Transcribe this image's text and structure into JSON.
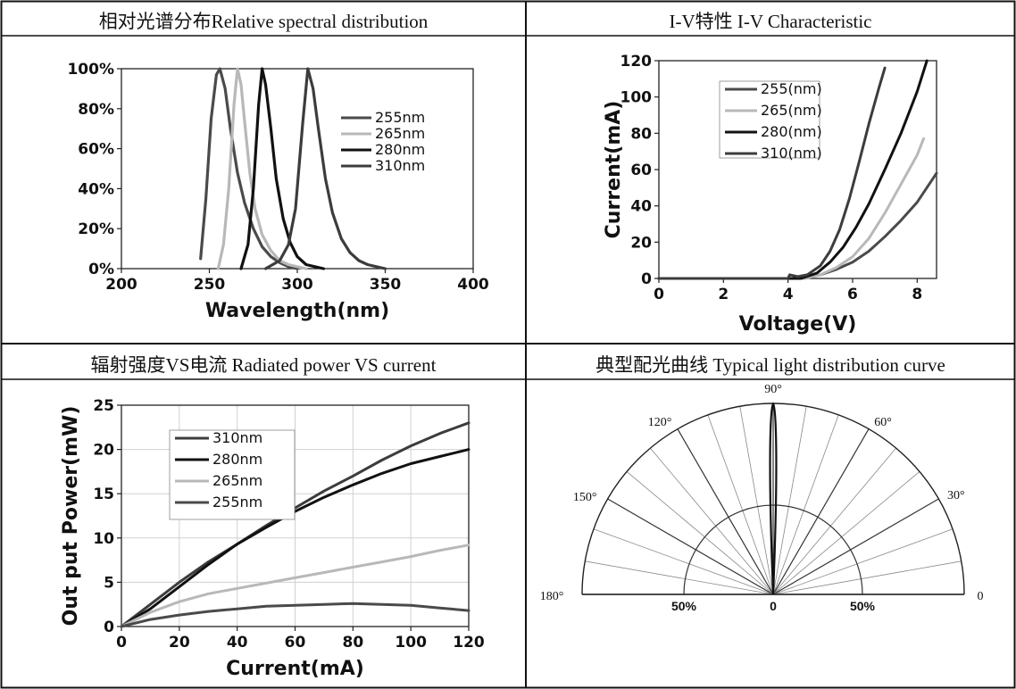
{
  "panels": {
    "spectral_title": "相对光谱分布Relative spectral distribution",
    "iv_title": "I-V特性 I-V Characteristic",
    "power_title": "辐射强度VS电流 Radiated power VS current",
    "polar_title": "典型配光曲线 Typical light distribution curve"
  },
  "colors": {
    "c255": "#4a4a4a",
    "c265": "#b8b8b8",
    "c280": "#111111",
    "c310": "#3c3c3c"
  },
  "chart_data": [
    {
      "type": "line",
      "id": "spectral",
      "xlabel": "Wavelength(nm)",
      "ylabel": "",
      "xlim": [
        200,
        400
      ],
      "ylim": [
        0,
        100
      ],
      "x_ticks": [
        "200",
        "250",
        "300",
        "350",
        "400"
      ],
      "y_ticks": [
        "0%",
        "20%",
        "40%",
        "60%",
        "80%",
        "100%"
      ],
      "legend_position": "right",
      "series": [
        {
          "name": "255nm",
          "color": "#4a4a4a",
          "x": [
            245,
            248,
            251,
            254,
            256,
            259,
            262,
            266,
            270,
            275,
            280,
            285,
            290,
            295,
            300
          ],
          "y": [
            5,
            35,
            75,
            97,
            100,
            90,
            70,
            48,
            33,
            20,
            11,
            6,
            3,
            1,
            0
          ]
        },
        {
          "name": "265nm",
          "color": "#b8b8b8",
          "x": [
            255,
            258,
            261,
            264,
            266,
            268,
            270,
            273,
            276,
            280,
            285,
            290,
            295,
            300,
            305
          ],
          "y": [
            0,
            12,
            40,
            82,
            100,
            92,
            74,
            48,
            30,
            17,
            9,
            4,
            2,
            1,
            0
          ]
        },
        {
          "name": "280nm",
          "color": "#111111",
          "x": [
            268,
            272,
            275,
            278,
            280,
            282,
            285,
            288,
            292,
            296,
            300,
            305,
            310,
            315
          ],
          "y": [
            0,
            12,
            40,
            82,
            100,
            92,
            70,
            45,
            25,
            13,
            6,
            2,
            1,
            0
          ]
        },
        {
          "name": "310nm",
          "color": "#3c3c3c",
          "x": [
            282,
            290,
            295,
            299,
            303,
            306,
            309,
            312,
            316,
            320,
            325,
            330,
            335,
            340,
            345,
            350
          ],
          "y": [
            0,
            4,
            12,
            30,
            72,
            100,
            90,
            70,
            45,
            28,
            15,
            8,
            4,
            2,
            1,
            0
          ]
        }
      ]
    },
    {
      "type": "line",
      "id": "iv",
      "xlabel": "Voltage(V)",
      "ylabel": "Current(mA)",
      "xlim": [
        0,
        8.6
      ],
      "ylim": [
        0,
        120
      ],
      "x_ticks": [
        "0",
        "2",
        "4",
        "6",
        "8"
      ],
      "y_ticks": [
        "0",
        "20",
        "40",
        "60",
        "80",
        "100",
        "120"
      ],
      "legend_position": "top-center",
      "series": [
        {
          "name": "255(nm)",
          "color": "#4a4a4a",
          "x": [
            0,
            4.5,
            5.0,
            5.5,
            6.0,
            6.5,
            7.0,
            7.5,
            8.0,
            8.6
          ],
          "y": [
            0,
            0,
            2,
            5,
            9,
            15,
            23,
            32,
            42,
            58
          ]
        },
        {
          "name": "265(nm)",
          "color": "#b8b8b8",
          "x": [
            0,
            4.5,
            5.0,
            5.5,
            6.0,
            6.5,
            7.0,
            7.5,
            8.0,
            8.2
          ],
          "y": [
            0,
            0,
            2,
            6,
            12,
            22,
            36,
            52,
            68,
            77
          ]
        },
        {
          "name": "280(nm)",
          "color": "#111111",
          "x": [
            0,
            4.4,
            4.9,
            5.3,
            5.7,
            6.1,
            6.5,
            7.0,
            7.5,
            8.0,
            8.3
          ],
          "y": [
            0,
            0,
            3,
            9,
            17,
            28,
            41,
            60,
            80,
            103,
            120
          ]
        },
        {
          "name": "310(nm)",
          "color": "#3c3c3c",
          "x": [
            0,
            4.0,
            4.05,
            4.3,
            4.6,
            5.0,
            5.3,
            5.6,
            5.9,
            6.2,
            6.5,
            6.8,
            7.0
          ],
          "y": [
            0,
            0,
            2,
            1,
            2,
            7,
            15,
            27,
            44,
            64,
            85,
            104,
            116
          ]
        }
      ]
    },
    {
      "type": "line",
      "id": "power",
      "xlabel": "Current(mA)",
      "ylabel": "Out put Power(mW)",
      "xlim": [
        0,
        120
      ],
      "ylim": [
        0,
        25
      ],
      "x_ticks": [
        "0",
        "20",
        "40",
        "60",
        "80",
        "100",
        "120"
      ],
      "y_ticks": [
        "0",
        "5",
        "10",
        "15",
        "20",
        "25"
      ],
      "grid": true,
      "legend_position": "top-left",
      "series": [
        {
          "name": "310nm",
          "color": "#3c3c3c",
          "x": [
            0,
            10,
            20,
            30,
            40,
            50,
            60,
            70,
            80,
            90,
            100,
            110,
            120
          ],
          "y": [
            0,
            2.5,
            5,
            7.3,
            9.3,
            11.4,
            13.4,
            15.3,
            17,
            18.8,
            20.4,
            21.8,
            23
          ]
        },
        {
          "name": "280nm",
          "color": "#111111",
          "x": [
            0,
            10,
            20,
            30,
            40,
            50,
            60,
            70,
            80,
            90,
            100,
            110,
            120
          ],
          "y": [
            0,
            2,
            4.5,
            7,
            9.3,
            11.2,
            13,
            14.6,
            16,
            17.3,
            18.4,
            19.2,
            20
          ]
        },
        {
          "name": "265nm",
          "color": "#b8b8b8",
          "x": [
            0,
            10,
            20,
            30,
            40,
            50,
            60,
            70,
            80,
            90,
            100,
            110,
            120
          ],
          "y": [
            0,
            1.6,
            2.8,
            3.7,
            4.3,
            4.9,
            5.5,
            6.1,
            6.7,
            7.3,
            7.9,
            8.6,
            9.2
          ]
        },
        {
          "name": "255nm",
          "color": "#4a4a4a",
          "x": [
            0,
            10,
            20,
            30,
            40,
            50,
            60,
            70,
            80,
            90,
            100,
            110,
            120
          ],
          "y": [
            0,
            0.8,
            1.3,
            1.7,
            2.0,
            2.3,
            2.4,
            2.5,
            2.6,
            2.5,
            2.4,
            2.1,
            1.8
          ]
        }
      ]
    },
    {
      "type": "polar",
      "id": "polar",
      "angle_labels": [
        "180°",
        "150°",
        "120°",
        "90°",
        "60°",
        "30°",
        "0"
      ],
      "radial_labels": [
        "50%",
        "0",
        "50%"
      ],
      "beam_half_angle_deg": 2,
      "beam_peak": 100
    }
  ]
}
